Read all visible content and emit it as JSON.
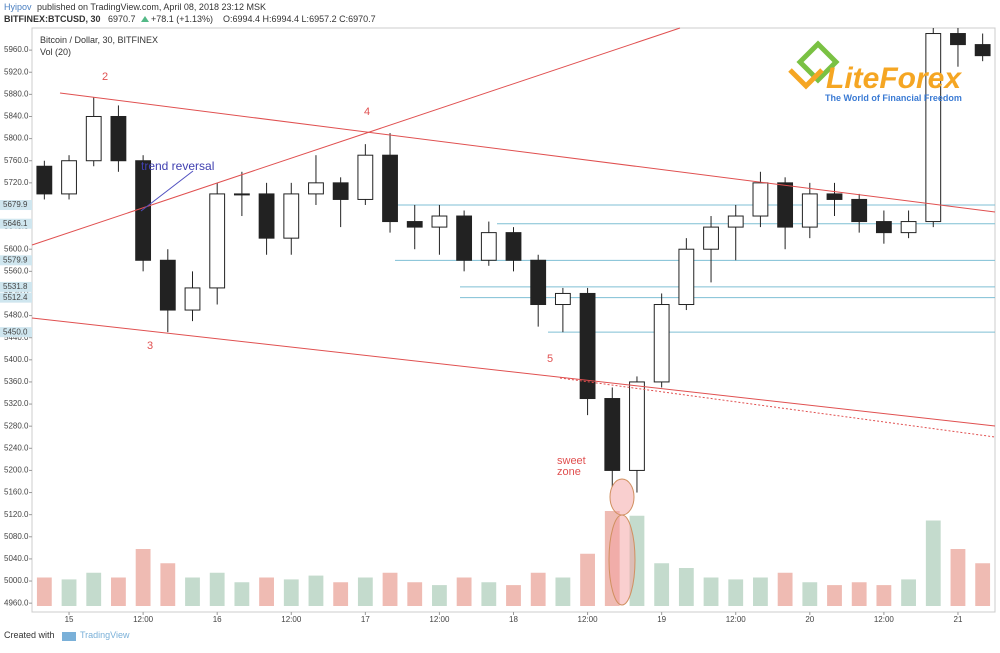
{
  "header": {
    "author": "Hyipov",
    "published": "published on TradingView.com, April 08, 2018 23:12 MSK",
    "symbol": "BITFINEX:BTCUSD, 30",
    "last": "6970.7",
    "change": "+78.1 (+1.13%)",
    "ohlc": "O:6994.4 H:6994.4 L:6957.2 C:6970.7"
  },
  "logo": {
    "name": "LiteForex",
    "tagline": "The World of Financial Freedom"
  },
  "footer": {
    "created": "Created with",
    "brand": "TradingView"
  },
  "chart_data": {
    "type": "candlestick",
    "title": "Bitcoin / Dollar, 30, BITFINEX",
    "volume_label": "Vol (20)",
    "categories": [
      null,
      "15",
      null,
      null,
      "12:00",
      null,
      null,
      "16",
      null,
      null,
      "12:00",
      null,
      null,
      "17",
      null,
      null,
      "12:00",
      null,
      null,
      "18",
      null,
      null,
      "12:00",
      null,
      null,
      "19",
      null,
      null,
      "12:00",
      null,
      null,
      "20",
      null,
      null,
      "12:00",
      null,
      null,
      "21",
      null
    ],
    "open": [
      5750,
      5700,
      5760,
      5840,
      5760,
      5580,
      5490,
      5530,
      5700,
      5700,
      5620,
      5700,
      5720,
      5690,
      5770,
      5650,
      5640,
      5660,
      5580,
      5630,
      5580,
      5500,
      5520,
      5330,
      5200,
      5360,
      5500,
      5600,
      5640,
      5660,
      5720,
      5640,
      5700,
      5690,
      5650,
      5630,
      5650,
      5990,
      5970
    ],
    "high": [
      5760,
      5770,
      5875,
      5860,
      5770,
      5600,
      5560,
      5720,
      5740,
      5720,
      5720,
      5770,
      5730,
      5790,
      5810,
      5680,
      5680,
      5670,
      5650,
      5640,
      5590,
      5530,
      5530,
      5350,
      5370,
      5520,
      5620,
      5660,
      5680,
      5740,
      5730,
      5720,
      5720,
      5700,
      5670,
      5670,
      6000,
      6000,
      5990
    ],
    "low": [
      5690,
      5690,
      5750,
      5740,
      5560,
      5450,
      5470,
      5500,
      5660,
      5590,
      5590,
      5680,
      5640,
      5680,
      5630,
      5600,
      5590,
      5560,
      5570,
      5560,
      5460,
      5450,
      5300,
      5170,
      5160,
      5350,
      5490,
      5540,
      5580,
      5640,
      5600,
      5620,
      5660,
      5630,
      5610,
      5620,
      5640,
      5930,
      5940
    ],
    "close": [
      5700,
      5760,
      5840,
      5760,
      5580,
      5490,
      5530,
      5700,
      5700,
      5620,
      5700,
      5720,
      5690,
      5770,
      5650,
      5640,
      5660,
      5580,
      5630,
      5580,
      5500,
      5520,
      5330,
      5200,
      5360,
      5500,
      5600,
      5640,
      5660,
      5720,
      5640,
      5700,
      5690,
      5650,
      5630,
      5650,
      5990,
      5970,
      5950
    ],
    "volume": [
      30,
      28,
      35,
      30,
      60,
      45,
      30,
      35,
      25,
      30,
      28,
      32,
      25,
      30,
      35,
      25,
      22,
      30,
      25,
      22,
      35,
      30,
      55,
      100,
      95,
      45,
      40,
      30,
      28,
      30,
      35,
      25,
      22,
      25,
      22,
      28,
      90,
      60,
      45
    ],
    "up_color": "#6ba583",
    "down_color": "#d75442",
    "ylim": [
      4944,
      6000
    ],
    "yticks": [
      {
        "value": 4960,
        "label": "4960.0"
      },
      {
        "value": 5000,
        "label": "5000.0"
      },
      {
        "value": 5040,
        "label": "5040.0"
      },
      {
        "value": 5080,
        "label": "5080.0"
      },
      {
        "value": 5120,
        "label": "5120.0"
      },
      {
        "value": 5160,
        "label": "5160.0"
      },
      {
        "value": 5200,
        "label": "5200.0"
      },
      {
        "value": 5240,
        "label": "5240.0"
      },
      {
        "value": 5280,
        "label": "5280.0"
      },
      {
        "value": 5320,
        "label": "5320.0"
      },
      {
        "value": 5360,
        "label": "5360.0"
      },
      {
        "value": 5400,
        "label": "5400.0"
      },
      {
        "value": 5440,
        "label": "5440.0"
      },
      {
        "value": 5480,
        "label": "5480.0"
      },
      {
        "value": 5520,
        "label": "5520.0"
      },
      {
        "value": 5560,
        "label": "5560.0"
      },
      {
        "value": 5600,
        "label": "5600.0"
      },
      {
        "value": 5640,
        "label": "5640.0"
      },
      {
        "value": 5680,
        "label": "5680.0"
      },
      {
        "value": 5720,
        "label": "5720.0"
      },
      {
        "value": 5760,
        "label": "5760.0"
      },
      {
        "value": 5800,
        "label": "5800.0"
      },
      {
        "value": 5840,
        "label": "5840.0"
      },
      {
        "value": 5880,
        "label": "5880.0"
      },
      {
        "value": 5920,
        "label": "5920.0"
      },
      {
        "value": 5960,
        "label": "5960.0"
      }
    ],
    "levels": [
      5679.9,
      5646.1,
      5579.9,
      5531.8,
      5512.4,
      {
        "value": 5450,
        "label": "5450.0"
      }
    ],
    "level_color": "#7fbfd4",
    "annotations": [
      "2",
      "3",
      "4",
      "5",
      "trend reversal",
      "sweet",
      "zone"
    ]
  }
}
